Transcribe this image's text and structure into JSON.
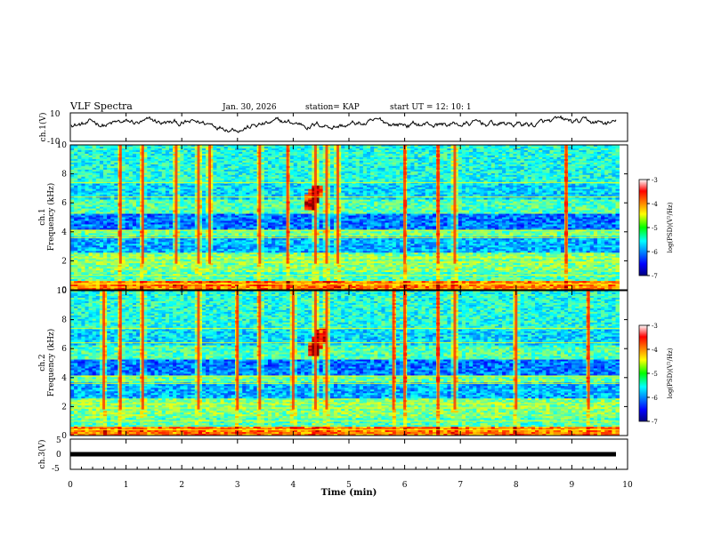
{
  "header": {
    "title": "VLF Spectra",
    "date": "Jan. 30, 2026",
    "station": "station= KAP",
    "start_time": "start UT =  12: 10: 1"
  },
  "chart_data": [
    {
      "type": "line",
      "name": "ch1-waveform",
      "ylabel": "ch.1(V)",
      "ylim": [
        -10,
        10
      ],
      "yticks": [
        "10",
        "-10"
      ],
      "xlim": [
        0,
        10
      ],
      "description_series": "voltage trace fluctuating roughly between -8 and 8 V"
    },
    {
      "type": "heatmap",
      "name": "ch1-spectrogram",
      "ylabel": "ch.1 Frequency (kHz)",
      "ylabel_lines": [
        "ch.1",
        "Frequency (kHz)"
      ],
      "ylim": [
        0,
        10
      ],
      "yticks": [
        "0",
        "2",
        "4",
        "6",
        "8",
        "10"
      ],
      "xlim": [
        0,
        9.85
      ],
      "colorbar": {
        "label": "log(PSD)(V²/Hz)",
        "range": [
          -7,
          -3
        ],
        "ticks": [
          "-3",
          "-4",
          "-5",
          "-6",
          "-7"
        ]
      },
      "features": {
        "emission_events_min": [
          0.9,
          1.3,
          1.9,
          2.3,
          2.5,
          3.4,
          3.9,
          4.4,
          4.6,
          4.8,
          6.0,
          6.6,
          6.9,
          8.9
        ],
        "chorus_burst": {
          "start_min": 4.2,
          "end_min": 4.5,
          "freq_khz": [
            5.5,
            7.2
          ]
        }
      }
    },
    {
      "type": "heatmap",
      "name": "ch2-spectrogram",
      "ylabel": "ch.2 Frequency (kHz)",
      "ylabel_lines": [
        "ch.2",
        "Frequency (kHz)"
      ],
      "ylim": [
        0,
        10
      ],
      "yticks": [
        "0",
        "2",
        "4",
        "6",
        "8",
        "10"
      ],
      "xlim": [
        0,
        9.85
      ],
      "colorbar": {
        "label": "log(PSD)(V²/Hz)",
        "range": [
          -7,
          -3
        ],
        "ticks": [
          "-3",
          "-4",
          "-5",
          "-6",
          "-7"
        ]
      },
      "features": {
        "emission_events_min": [
          0.6,
          0.9,
          1.3,
          2.3,
          3.0,
          3.4,
          4.0,
          4.4,
          4.6,
          5.8,
          6.0,
          6.6,
          6.9,
          8.0,
          9.3
        ],
        "chorus_burst": {
          "start_min": 4.3,
          "end_min": 4.6,
          "freq_khz": [
            5.5,
            7.5
          ]
        }
      }
    },
    {
      "type": "line",
      "name": "ch3-waveform",
      "ylabel": "ch.3(V)",
      "ylim": [
        -5,
        5
      ],
      "yticks": [
        "5",
        "0",
        "-5"
      ],
      "xlim": [
        0,
        10
      ],
      "constant_value_v": 0
    }
  ],
  "xaxis": {
    "label": "Time (min)",
    "ticks": [
      "0",
      "1",
      "2",
      "3",
      "4",
      "5",
      "6",
      "7",
      "8",
      "9",
      "10"
    ]
  }
}
